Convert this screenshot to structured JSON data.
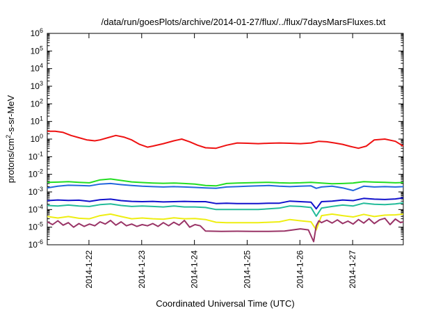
{
  "chart_data": {
    "type": "line",
    "title": "/data/run/goesPlots/archive/2014-01-27/flux/../flux/7daysMarsFluxes.txt",
    "xlabel": "Coordinated Universal Time (UTC)",
    "ylabel": "protons/cm2-s-sr-MeV",
    "yscale": "log",
    "ylim": [
      1e-06,
      1000000.0
    ],
    "xlim": [
      "2014-01-21 05:00",
      "2014-01-27 23:00"
    ],
    "xticks": [
      "2014-1-22",
      "2014-1-23",
      "2014-1-24",
      "2014-1-25",
      "2014-1-26",
      "2014-1-27"
    ],
    "yticks": [
      {
        "base": "10",
        "exp": "-6"
      },
      {
        "base": "10",
        "exp": "-5"
      },
      {
        "base": "10",
        "exp": "-4"
      },
      {
        "base": "10",
        "exp": "-3"
      },
      {
        "base": "10",
        "exp": "-2"
      },
      {
        "base": "10",
        "exp": "-1"
      },
      {
        "base": "10",
        "exp": "0"
      },
      {
        "base": "10",
        "exp": "1"
      },
      {
        "base": "10",
        "exp": "2"
      },
      {
        "base": "10",
        "exp": "3"
      },
      {
        "base": "10",
        "exp": "4"
      },
      {
        "base": "10",
        "exp": "5"
      },
      {
        "base": "10",
        "exp": "6"
      }
    ],
    "grid": false,
    "series": [
      {
        "color": "#ee1111",
        "x": [
          0,
          0.15,
          0.3,
          0.45,
          0.6,
          0.75,
          0.9,
          1.0,
          1.15,
          1.3,
          1.45,
          1.6,
          1.75,
          1.9,
          2.0,
          2.2,
          2.4,
          2.55,
          2.7,
          2.85,
          3.0,
          3.2,
          3.4,
          3.6,
          3.8,
          4.0,
          4.2,
          4.4,
          4.6,
          4.8,
          5.0,
          5.15,
          5.3,
          5.45,
          5.6,
          5.75,
          5.9,
          6.05,
          6.2,
          6.4,
          6.6,
          6.75
        ],
        "values": [
          2.8,
          2.8,
          2.4,
          1.6,
          1.2,
          0.9,
          0.8,
          0.9,
          1.2,
          1.6,
          1.3,
          0.9,
          0.5,
          0.35,
          0.4,
          0.55,
          0.8,
          1.0,
          0.7,
          0.45,
          0.32,
          0.3,
          0.45,
          0.6,
          0.58,
          0.55,
          0.58,
          0.6,
          0.58,
          0.55,
          0.6,
          0.75,
          0.7,
          0.6,
          0.5,
          0.38,
          0.3,
          0.4,
          0.9,
          1.0,
          0.75,
          0.4
        ]
      },
      {
        "color": "#22dd22",
        "x": [
          0,
          0.2,
          0.4,
          0.6,
          0.8,
          1.0,
          1.2,
          1.4,
          1.6,
          1.8,
          2.0,
          2.2,
          2.4,
          2.6,
          2.8,
          3.0,
          3.2,
          3.4,
          3.6,
          3.8,
          4.0,
          4.2,
          4.4,
          4.6,
          4.8,
          5.0,
          5.2,
          5.4,
          5.6,
          5.8,
          6.0,
          6.2,
          6.4,
          6.6,
          6.75
        ],
        "values": [
          0.0035,
          0.0036,
          0.0038,
          0.0035,
          0.0033,
          0.0048,
          0.0054,
          0.0045,
          0.0037,
          0.0034,
          0.0032,
          0.0031,
          0.0032,
          0.003,
          0.0028,
          0.0023,
          0.0022,
          0.003,
          0.0032,
          0.0033,
          0.0034,
          0.0035,
          0.0033,
          0.0032,
          0.0033,
          0.0035,
          0.0032,
          0.0029,
          0.003,
          0.0032,
          0.0038,
          0.0036,
          0.0035,
          0.0033,
          0.0034
        ]
      },
      {
        "color": "#2266dd",
        "x": [
          0,
          0.2,
          0.4,
          0.6,
          0.8,
          1.0,
          1.2,
          1.4,
          1.6,
          1.8,
          2.0,
          2.2,
          2.4,
          2.6,
          2.8,
          3.0,
          3.2,
          3.4,
          3.6,
          3.8,
          4.0,
          4.2,
          4.4,
          4.6,
          4.8,
          5.0,
          5.1,
          5.2,
          5.4,
          5.6,
          5.8,
          6.0,
          6.2,
          6.4,
          6.6,
          6.75
        ],
        "values": [
          0.0017,
          0.0021,
          0.0024,
          0.0023,
          0.0022,
          0.0028,
          0.003,
          0.0026,
          0.0023,
          0.0021,
          0.002,
          0.0019,
          0.002,
          0.0019,
          0.0018,
          0.0017,
          0.0016,
          0.0019,
          0.002,
          0.0021,
          0.0022,
          0.0023,
          0.0021,
          0.002,
          0.0021,
          0.0022,
          0.0016,
          0.0019,
          0.0021,
          0.0017,
          0.0012,
          0.0021,
          0.0019,
          0.002,
          0.0019,
          0.002
        ]
      },
      {
        "color": "#1111cc",
        "x": [
          0,
          0.2,
          0.4,
          0.6,
          0.8,
          1.0,
          1.2,
          1.4,
          1.6,
          1.8,
          2.0,
          2.2,
          2.4,
          2.6,
          2.8,
          3.0,
          3.2,
          3.4,
          3.6,
          3.8,
          4.0,
          4.2,
          4.4,
          4.6,
          4.8,
          5.0,
          5.1,
          5.2,
          5.4,
          5.6,
          5.8,
          6.0,
          6.2,
          6.4,
          6.6,
          6.75
        ],
        "values": [
          0.00032,
          0.00035,
          0.00033,
          0.00034,
          0.00029,
          0.00036,
          0.00039,
          0.00032,
          0.00029,
          0.00028,
          0.00029,
          0.00027,
          0.00028,
          0.00029,
          0.00028,
          0.00028,
          0.00022,
          0.00023,
          0.00022,
          0.00022,
          0.00022,
          0.00023,
          0.00023,
          0.0003,
          0.00028,
          0.00026,
          0.00011,
          0.00028,
          0.0003,
          0.00035,
          0.00032,
          0.00043,
          0.00039,
          0.00037,
          0.0004,
          0.00046
        ]
      },
      {
        "color": "#22bb99",
        "x": [
          0,
          0.2,
          0.4,
          0.6,
          0.8,
          1.0,
          1.2,
          1.4,
          1.6,
          1.8,
          2.0,
          2.2,
          2.4,
          2.6,
          2.8,
          3.0,
          3.2,
          3.4,
          3.6,
          3.8,
          4.0,
          4.2,
          4.4,
          4.6,
          4.8,
          5.0,
          5.1,
          5.2,
          5.4,
          5.6,
          5.8,
          6.0,
          6.2,
          6.4,
          6.6,
          6.75
        ],
        "values": [
          0.00017,
          0.00016,
          0.00018,
          0.00016,
          0.00015,
          0.00019,
          0.00021,
          0.00017,
          0.00015,
          0.00016,
          0.00015,
          0.00014,
          0.00016,
          0.00014,
          0.00014,
          0.00013,
          0.0001,
          0.0001,
          0.0001,
          0.0001,
          0.0001,
          0.00011,
          0.00012,
          0.00016,
          0.00015,
          0.00013,
          4.2e-05,
          0.00012,
          0.00015,
          0.00018,
          0.00016,
          0.00023,
          0.0002,
          0.00019,
          0.00021,
          0.00024
        ]
      },
      {
        "color": "#eeee11",
        "x": [
          0,
          0.2,
          0.4,
          0.6,
          0.8,
          1.0,
          1.2,
          1.4,
          1.6,
          1.8,
          2.0,
          2.2,
          2.4,
          2.6,
          2.8,
          3.0,
          3.2,
          3.4,
          3.6,
          3.8,
          4.0,
          4.2,
          4.4,
          4.6,
          4.8,
          5.0,
          5.1,
          5.2,
          5.4,
          5.6,
          5.8,
          6.0,
          6.2,
          6.4,
          6.6,
          6.75
        ],
        "values": [
          4e-05,
          3.3e-05,
          4e-05,
          3.2e-05,
          3e-05,
          4.5e-05,
          5.5e-05,
          4e-05,
          3e-05,
          3.3e-05,
          3e-05,
          2.8e-05,
          3.4e-05,
          3e-05,
          3.1e-05,
          2.7e-05,
          1.9e-05,
          1.8e-05,
          1.8e-05,
          1.8e-05,
          1.8e-05,
          1.9e-05,
          2e-05,
          2.7e-05,
          2.3e-05,
          2e-05,
          7e-06,
          4.5e-05,
          5.5e-05,
          4.5e-05,
          3.8e-05,
          5.3e-05,
          4e-05,
          4.8e-05,
          5e-05,
          5.5e-05
        ]
      },
      {
        "color": "#993366",
        "x": [
          0,
          0.1,
          0.2,
          0.3,
          0.4,
          0.5,
          0.6,
          0.7,
          0.8,
          0.9,
          1.0,
          1.1,
          1.2,
          1.3,
          1.4,
          1.5,
          1.6,
          1.7,
          1.8,
          1.9,
          2.0,
          2.1,
          2.2,
          2.3,
          2.4,
          2.5,
          2.6,
          2.7,
          2.8,
          2.9,
          3.0,
          3.3,
          3.6,
          3.9,
          4.2,
          4.5,
          4.8,
          4.95,
          5.05,
          5.1,
          5.15,
          5.2,
          5.3,
          5.4,
          5.5,
          5.6,
          5.7,
          5.8,
          5.9,
          6.0,
          6.1,
          6.2,
          6.3,
          6.4,
          6.5,
          6.6,
          6.7,
          6.75
        ],
        "values": [
          2e-05,
          1.4e-05,
          2.3e-05,
          1.3e-05,
          1.8e-05,
          1e-05,
          1.6e-05,
          1.1e-05,
          1.5e-05,
          1.2e-05,
          2e-05,
          1.5e-05,
          2.4e-05,
          1.3e-05,
          2e-05,
          1.2e-05,
          1.5e-05,
          1.1e-05,
          1.4e-05,
          1.2e-05,
          1.6e-05,
          1.1e-05,
          1.8e-05,
          1.2e-05,
          1.9e-05,
          1.3e-05,
          2.4e-05,
          1e-05,
          1.4e-05,
          1.2e-05,
          6e-06,
          5.8e-06,
          5.9e-06,
          5.8e-06,
          5.8e-06,
          6e-06,
          8e-06,
          7e-06,
          1.5e-06,
          1.2e-05,
          2.3e-05,
          1.8e-05,
          2.5e-05,
          1.7e-05,
          2.6e-05,
          1.6e-05,
          2.2e-05,
          1.5e-05,
          2.7e-05,
          1.7e-05,
          3e-05,
          1.6e-05,
          2.6e-05,
          3.2e-05,
          1.4e-05,
          2.9e-05,
          1.8e-05,
          2e-05
        ]
      }
    ]
  }
}
